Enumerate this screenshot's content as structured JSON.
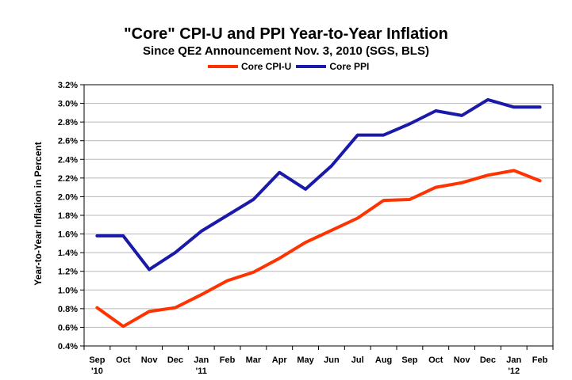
{
  "chart_data": {
    "type": "line",
    "title": "\"Core\" CPI-U and PPI Year-to-Year Inflation",
    "subtitle": "Since QE2 Announcement Nov. 3, 2010 (SGS, BLS)",
    "ylabel": "Year-to-Year Inflation in Percent",
    "xlabel": "",
    "ylim": [
      0.4,
      3.2
    ],
    "ytick_step": 0.2,
    "ytick_labels": [
      "0.4%",
      "0.6%",
      "0.8%",
      "1.0%",
      "1.2%",
      "1.4%",
      "1.6%",
      "1.8%",
      "2.0%",
      "2.2%",
      "2.4%",
      "2.6%",
      "2.8%",
      "3.0%",
      "3.2%"
    ],
    "categories": [
      "Sep",
      "Oct",
      "Nov",
      "Dec",
      "Jan",
      "Feb",
      "Mar",
      "Apr",
      "May",
      "Jun",
      "Jul",
      "Aug",
      "Sep",
      "Oct",
      "Nov",
      "Dec",
      "Jan",
      "Feb"
    ],
    "year_labels": {
      "0": "'10",
      "4": "'11",
      "16": "'12"
    },
    "series": [
      {
        "name": "Core CPI-U",
        "color": "#ff3300",
        "values": [
          0.81,
          0.61,
          0.77,
          0.81,
          0.95,
          1.1,
          1.19,
          1.34,
          1.51,
          1.64,
          1.77,
          1.96,
          1.97,
          2.1,
          2.15,
          2.23,
          2.28,
          2.17
        ]
      },
      {
        "name": "Core PPI",
        "color": "#1a1aaa",
        "values": [
          1.58,
          1.58,
          1.22,
          1.4,
          1.63,
          1.8,
          1.97,
          2.26,
          2.08,
          2.33,
          2.66,
          2.66,
          2.78,
          2.92,
          2.87,
          3.04,
          2.96,
          2.96
        ]
      }
    ],
    "grid": true,
    "legend_position": "top"
  }
}
